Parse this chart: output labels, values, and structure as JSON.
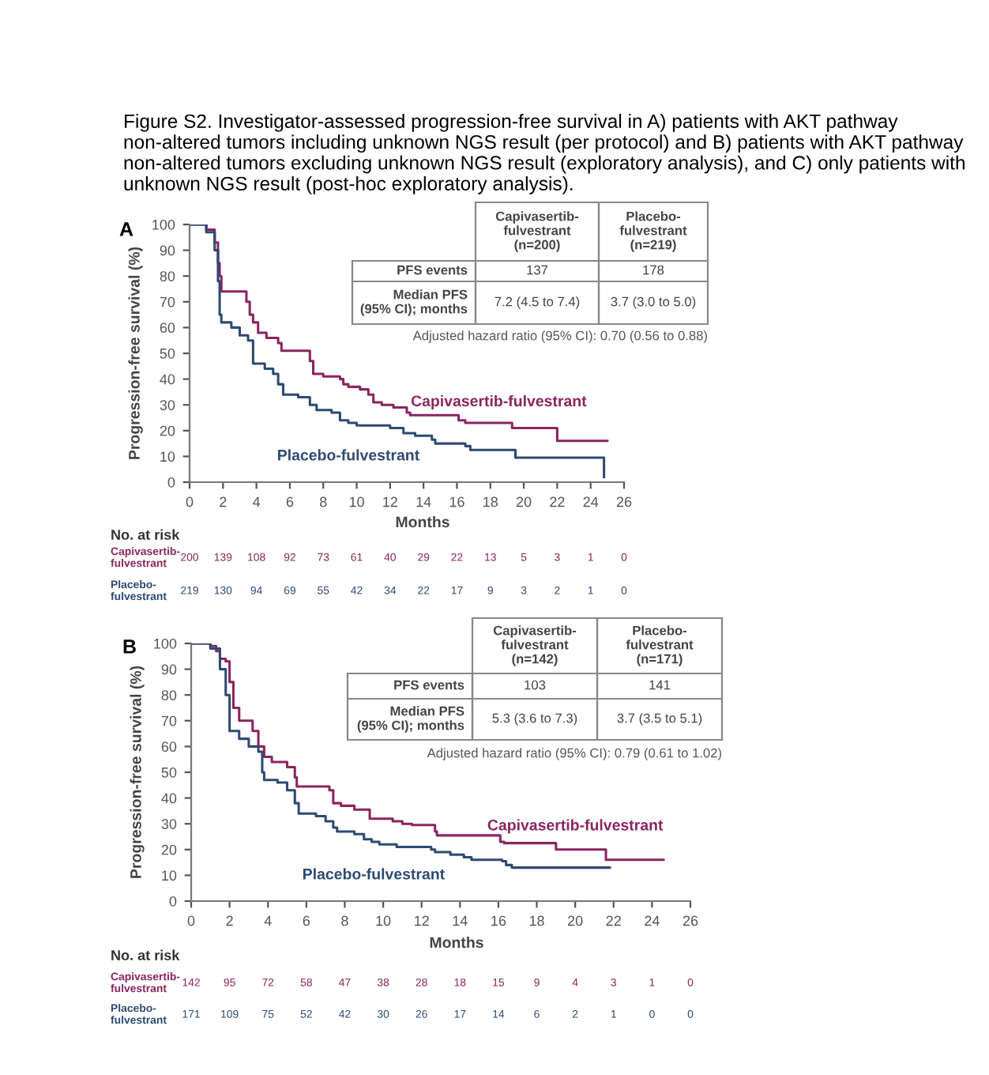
{
  "chart_data": [
    {
      "type": "step",
      "title": "Figure S2. Investigator-assessed progression-free survival in A) patients with AKT pathway non-altered tumors including unknown NGS result (per protocol) and B) patients with AKT pathway non-altered tumors excluding unknown NGS result (exploratory analysis), and C) only patients with unknown NGS result (post-hoc exploratory analysis).",
      "xlabel": "Months",
      "ylabel": "Progression-free survival (%)",
      "xlim": [
        0,
        26
      ],
      "ylim": [
        0,
        100
      ],
      "xticks": [
        0,
        2,
        4,
        6,
        8,
        10,
        12,
        14,
        16,
        18,
        20,
        22,
        24,
        26
      ],
      "yticks": [
        0,
        10,
        20,
        30,
        40,
        50,
        60,
        70,
        80,
        90,
        100
      ],
      "grid": false,
      "legend": false,
      "series": [
        {
          "name": "Capivasertib-fulvestrant",
          "color": "#8b2560",
          "x": [
            0,
            1.0,
            1.5,
            1.7,
            1.8,
            1.9,
            3.4,
            3.6,
            3.8,
            4.1,
            4.6,
            5.3,
            5.5,
            7.2,
            7.4,
            8,
            9,
            9.2,
            9.5,
            10.2,
            10.7,
            11,
            11.5,
            12.2,
            13,
            13.2,
            16.1,
            16.5,
            19.3,
            22,
            25
          ],
          "values": [
            100,
            98,
            93,
            85,
            80,
            74,
            70,
            65,
            62,
            58,
            56,
            54,
            51,
            47,
            42,
            41,
            40,
            38,
            37,
            36,
            34,
            31,
            30,
            29,
            27,
            26,
            24,
            23,
            21,
            16,
            16
          ]
        },
        {
          "name": "Placebo-fulvestrant",
          "color": "#2e4a72",
          "x": [
            0,
            1.0,
            1.5,
            1.7,
            1.8,
            1.9,
            2.5,
            3.0,
            3.5,
            3.8,
            4.5,
            5.0,
            5.3,
            5.6,
            6.5,
            7.2,
            7.6,
            8.5,
            9,
            9.5,
            10,
            12,
            12.8,
            13.5,
            14.5,
            14.7,
            16.5,
            16.8,
            19.5,
            24.8,
            24.8
          ],
          "values": [
            100,
            97,
            90,
            78,
            65,
            62,
            60,
            57,
            55,
            46,
            44,
            42,
            38,
            34,
            33,
            30,
            28,
            27,
            24,
            23,
            22,
            21,
            19,
            18,
            16.5,
            15,
            14,
            12.5,
            9.5,
            9.5,
            2
          ]
        }
      ],
      "annotations": [
        "A",
        "Capivasertib-\nfulvestrant\n(n=200)",
        "Placebo-\nfulvestrant\n(n=219)",
        "PFS events",
        "137",
        "178",
        "Median PFS\n(95% CI); months",
        "7.2 (4.5 to 7.4)",
        "3.7 (3.0 to 5.0)",
        "Adjusted hazard ratio (95% CI): 0.70 (0.56 to 0.88)",
        "No. at risk",
        "Capivasertib-\nfulvestrant",
        "Placebo-\nfulvestrant",
        "200",
        "139",
        "108",
        "92",
        "73",
        "61",
        "40",
        "29",
        "22",
        "13",
        "5",
        "3",
        "1",
        "0",
        "219",
        "130",
        "94",
        "69",
        "55",
        "42",
        "34",
        "22",
        "17",
        "9",
        "3",
        "2",
        "1",
        "0"
      ]
    },
    {
      "type": "step",
      "xlabel": "Months",
      "ylabel": "Progression-free survival (%)",
      "xlim": [
        0,
        26
      ],
      "ylim": [
        0,
        100
      ],
      "xticks": [
        0,
        2,
        4,
        6,
        8,
        10,
        12,
        14,
        16,
        18,
        20,
        22,
        24,
        26
      ],
      "yticks": [
        0,
        10,
        20,
        30,
        40,
        50,
        60,
        70,
        80,
        90,
        100
      ],
      "grid": false,
      "legend": false,
      "series": [
        {
          "name": "Capivasertib-fulvestrant",
          "color": "#8b2560",
          "x": [
            0,
            1.0,
            1.3,
            1.5,
            1.8,
            2.0,
            2.2,
            2.5,
            3.2,
            3.5,
            3.8,
            4.2,
            5.0,
            5.4,
            5.5,
            7.2,
            7.4,
            7.8,
            8.5,
            9.3,
            10.5,
            11,
            11.5,
            12.7,
            12.8,
            16.1,
            16.3,
            19,
            21.6,
            24.6
          ],
          "values": [
            100,
            99,
            97,
            94,
            93,
            85,
            75,
            70,
            66,
            60,
            56,
            54,
            52,
            48,
            44.5,
            43,
            38,
            37,
            35.5,
            32,
            31,
            30,
            29.5,
            27,
            25.5,
            23,
            22.5,
            20,
            16,
            16
          ]
        },
        {
          "name": "Placebo-fulvestrant",
          "color": "#2e4a72",
          "x": [
            0,
            1.0,
            1.5,
            1.8,
            2.0,
            2.5,
            3.0,
            3.5,
            3.7,
            3.8,
            4.5,
            5.0,
            5.4,
            5.6,
            6.5,
            7.0,
            7.4,
            7.6,
            8.5,
            9,
            9.4,
            9.8,
            10.7,
            12.5,
            12.7,
            13.5,
            14.2,
            14.6,
            16.2,
            16.4,
            16.7,
            21.8
          ],
          "values": [
            100,
            98,
            90,
            80,
            66,
            63,
            60,
            58,
            50,
            47,
            46,
            43,
            38,
            34,
            33,
            31,
            28.5,
            27,
            26,
            24,
            23,
            22,
            21,
            20,
            19,
            18,
            17,
            16,
            15.5,
            14,
            13,
            13
          ]
        }
      ],
      "annotations": [
        "B",
        "Capivasertib-\nfulvestrant\n(n=142)",
        "Placebo-\nfulvestrant\n(n=171)",
        "PFS events",
        "103",
        "141",
        "Median PFS\n(95% CI); months",
        "5.3 (3.6 to 7.3)",
        "3.7 (3.5 to 5.1)",
        "Adjusted hazard ratio (95% CI): 0.79 (0.61 to 1.02)",
        "No. at risk",
        "Capivasertib-\nfulvestrant",
        "Placebo-\nfulvestrant",
        "142",
        "95",
        "72",
        "58",
        "47",
        "38",
        "28",
        "18",
        "15",
        "9",
        "4",
        "3",
        "1",
        "0",
        "171",
        "109",
        "75",
        "52",
        "42",
        "30",
        "26",
        "17",
        "14",
        "6",
        "2",
        "1",
        "0",
        "0"
      ]
    }
  ]
}
